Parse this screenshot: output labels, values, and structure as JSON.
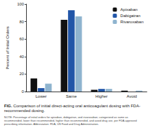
{
  "chart_data": {
    "type": "bar",
    "title": "FIG. Comparison of initial direct-acting oral anticoagulant dosing with FDA-recommended dosing.",
    "note": "NOTE: Percentage of initial orders for apixaban, dabigatran, and rivaroxaban; categorized as same as recommended, lower than recommended, higher than recommended, and avoid drug use, per FDA-approved prescribing information. Abbreviation: FDA, US Food and Drug Administration.",
    "y_label": "Percent of Initial Orders",
    "categories": [
      "Lower",
      "Same",
      "Higher",
      "Avoid"
    ],
    "series": [
      {
        "name": "Apixaban",
        "color": "#111111",
        "values": [
          15,
          82,
          2,
          1
        ]
      },
      {
        "name": "Dabigatran",
        "color": "#2256a8",
        "values": [
          4,
          93,
          3,
          0
        ]
      },
      {
        "name": "Rivaroxaban",
        "color": "#8fb4cf",
        "values": [
          9,
          86,
          3,
          1
        ]
      }
    ],
    "ylim": [
      0,
      100
    ],
    "yticks": [
      0,
      20,
      40,
      60,
      80,
      100
    ],
    "legend": "upper right",
    "grid": false
  }
}
